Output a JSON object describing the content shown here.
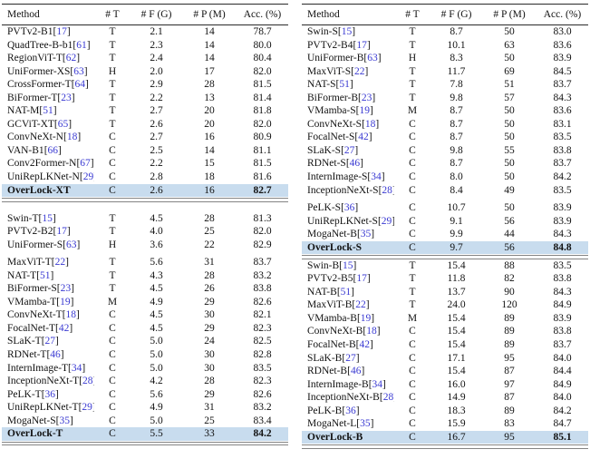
{
  "columns": {
    "method": "Method",
    "type": "# T",
    "flops": "# F (G)",
    "params": "# P (M)",
    "acc": "Acc. (%)"
  },
  "colors": {
    "highlight_row": "#c8dcee",
    "citation_blue": "#3a3ad2",
    "rule_dark": "#2a2a2a",
    "rule_gray": "#848484"
  },
  "left_table": {
    "sections": [
      {
        "gap_after": true,
        "rows": [
          {
            "method": "PVTv2-B1",
            "cite": "17",
            "t": "T",
            "f": "2.1",
            "p": "14",
            "acc": "78.7",
            "highlight": false,
            "gap_before": false
          },
          {
            "method": "QuadTree-B-b1",
            "cite": "61",
            "t": "T",
            "f": "2.3",
            "p": "14",
            "acc": "80.0",
            "highlight": false,
            "gap_before": false
          },
          {
            "method": "RegionViT-T",
            "cite": "62",
            "t": "T",
            "f": "2.4",
            "p": "14",
            "acc": "80.4",
            "highlight": false,
            "gap_before": false
          },
          {
            "method": "UniFormer-XS",
            "cite": "63",
            "t": "H",
            "f": "2.0",
            "p": "17",
            "acc": "82.0",
            "highlight": false,
            "gap_before": false
          },
          {
            "method": "CrossFormer-T",
            "cite": "64",
            "t": "T",
            "f": "2.9",
            "p": "28",
            "acc": "81.5",
            "highlight": false,
            "gap_before": false
          },
          {
            "method": "BiFormer-T",
            "cite": "23",
            "t": "T",
            "f": "2.2",
            "p": "13",
            "acc": "81.4",
            "highlight": false,
            "gap_before": false
          },
          {
            "method": "NAT-M",
            "cite": "51",
            "t": "T",
            "f": "2.7",
            "p": "20",
            "acc": "81.8",
            "highlight": false,
            "gap_before": false
          },
          {
            "method": "GCViT-XT",
            "cite": "65",
            "t": "T",
            "f": "2.6",
            "p": "20",
            "acc": "82.0",
            "highlight": false,
            "gap_before": false
          },
          {
            "method": "ConvNeXt-N",
            "cite": "18",
            "t": "C",
            "f": "2.7",
            "p": "16",
            "acc": "80.9",
            "highlight": false,
            "gap_before": false
          },
          {
            "method": "VAN-B1",
            "cite": "66",
            "t": "C",
            "f": "2.5",
            "p": "14",
            "acc": "81.1",
            "highlight": false,
            "gap_before": false
          },
          {
            "method": "Conv2Former-N",
            "cite": "67",
            "t": "C",
            "f": "2.2",
            "p": "15",
            "acc": "81.5",
            "highlight": false,
            "gap_before": false
          },
          {
            "method": "UniRepLKNet-N",
            "cite": "29",
            "t": "C",
            "f": "2.8",
            "p": "18",
            "acc": "81.6",
            "highlight": false,
            "gap_before": false
          },
          {
            "method": "OverLock-XT",
            "cite": "",
            "t": "C",
            "f": "2.6",
            "p": "16",
            "acc": "82.7",
            "highlight": true,
            "gap_before": false
          }
        ]
      },
      {
        "gap_after": false,
        "rows": [
          {
            "method": "Swin-T",
            "cite": "15",
            "t": "T",
            "f": "4.5",
            "p": "28",
            "acc": "81.3",
            "highlight": false,
            "gap_before": false
          },
          {
            "method": "PVTv2-B2",
            "cite": "17",
            "t": "T",
            "f": "4.0",
            "p": "25",
            "acc": "82.0",
            "highlight": false,
            "gap_before": false
          },
          {
            "method": "UniFormer-S",
            "cite": "63",
            "t": "H",
            "f": "3.6",
            "p": "22",
            "acc": "82.9",
            "highlight": false,
            "gap_before": false
          },
          {
            "method": "MaxViT-T",
            "cite": "22",
            "t": "T",
            "f": "5.6",
            "p": "31",
            "acc": "83.7",
            "highlight": false,
            "gap_before": true
          },
          {
            "method": "NAT-T",
            "cite": "51",
            "t": "T",
            "f": "4.3",
            "p": "28",
            "acc": "83.2",
            "highlight": false,
            "gap_before": false
          },
          {
            "method": "BiFormer-S",
            "cite": "23",
            "t": "T",
            "f": "4.5",
            "p": "26",
            "acc": "83.8",
            "highlight": false,
            "gap_before": false
          },
          {
            "method": "VMamba-T",
            "cite": "19",
            "t": "M",
            "f": "4.9",
            "p": "29",
            "acc": "82.6",
            "highlight": false,
            "gap_before": false
          },
          {
            "method": "ConvNeXt-T",
            "cite": "18",
            "t": "C",
            "f": "4.5",
            "p": "30",
            "acc": "82.1",
            "highlight": false,
            "gap_before": false
          },
          {
            "method": "FocalNet-T",
            "cite": "42",
            "t": "C",
            "f": "4.5",
            "p": "29",
            "acc": "82.3",
            "highlight": false,
            "gap_before": false
          },
          {
            "method": "SLaK-T",
            "cite": "27",
            "t": "C",
            "f": "5.0",
            "p": "24",
            "acc": "82.5",
            "highlight": false,
            "gap_before": false
          },
          {
            "method": "RDNet-T",
            "cite": "46",
            "t": "C",
            "f": "5.0",
            "p": "30",
            "acc": "82.8",
            "highlight": false,
            "gap_before": false
          },
          {
            "method": "InternImage-T",
            "cite": "34",
            "t": "C",
            "f": "5.0",
            "p": "30",
            "acc": "83.5",
            "highlight": false,
            "gap_before": false
          },
          {
            "method": "InceptionNeXt-T",
            "cite": "28",
            "t": "C",
            "f": "4.2",
            "p": "28",
            "acc": "82.3",
            "highlight": false,
            "gap_before": false
          },
          {
            "method": "PeLK-T",
            "cite": "36",
            "t": "C",
            "f": "5.6",
            "p": "29",
            "acc": "82.6",
            "highlight": false,
            "gap_before": false
          },
          {
            "method": "UniRepLKNet-T",
            "cite": "29",
            "t": "C",
            "f": "4.9",
            "p": "31",
            "acc": "83.2",
            "highlight": false,
            "gap_before": false
          },
          {
            "method": "MogaNet-S",
            "cite": "35",
            "t": "C",
            "f": "5.0",
            "p": "25",
            "acc": "83.4",
            "highlight": false,
            "gap_before": false
          },
          {
            "method": "OverLock-T",
            "cite": "",
            "t": "C",
            "f": "5.5",
            "p": "33",
            "acc": "84.2",
            "highlight": true,
            "gap_before": false
          }
        ]
      }
    ]
  },
  "right_table": {
    "sections": [
      {
        "gap_after": false,
        "rows": [
          {
            "method": "Swin-S",
            "cite": "15",
            "t": "T",
            "f": "8.7",
            "p": "50",
            "acc": "83.0",
            "highlight": false,
            "gap_before": false
          },
          {
            "method": "PVTv2-B4",
            "cite": "17",
            "t": "T",
            "f": "10.1",
            "p": "63",
            "acc": "83.6",
            "highlight": false,
            "gap_before": false
          },
          {
            "method": "UniFormer-B",
            "cite": "63",
            "t": "H",
            "f": "8.3",
            "p": "50",
            "acc": "83.9",
            "highlight": false,
            "gap_before": false
          },
          {
            "method": "MaxViT-S",
            "cite": "22",
            "t": "T",
            "f": "11.7",
            "p": "69",
            "acc": "84.5",
            "highlight": false,
            "gap_before": false
          },
          {
            "method": "NAT-S",
            "cite": "51",
            "t": "T",
            "f": "7.8",
            "p": "51",
            "acc": "83.7",
            "highlight": false,
            "gap_before": false
          },
          {
            "method": "BiFormer-B",
            "cite": "23",
            "t": "T",
            "f": "9.8",
            "p": "57",
            "acc": "84.3",
            "highlight": false,
            "gap_before": false
          },
          {
            "method": "VMamba-S",
            "cite": "19",
            "t": "M",
            "f": "8.7",
            "p": "50",
            "acc": "83.6",
            "highlight": false,
            "gap_before": false
          },
          {
            "method": "ConvNeXt-S",
            "cite": "18",
            "t": "C",
            "f": "8.7",
            "p": "50",
            "acc": "83.1",
            "highlight": false,
            "gap_before": false
          },
          {
            "method": "FocalNet-S",
            "cite": "42",
            "t": "C",
            "f": "8.7",
            "p": "50",
            "acc": "83.5",
            "highlight": false,
            "gap_before": false
          },
          {
            "method": "SLaK-S",
            "cite": "27",
            "t": "C",
            "f": "9.8",
            "p": "55",
            "acc": "83.8",
            "highlight": false,
            "gap_before": false
          },
          {
            "method": "RDNet-S",
            "cite": "46",
            "t": "C",
            "f": "8.7",
            "p": "50",
            "acc": "83.7",
            "highlight": false,
            "gap_before": false
          },
          {
            "method": "InternImage-S",
            "cite": "34",
            "t": "C",
            "f": "8.0",
            "p": "50",
            "acc": "84.2",
            "highlight": false,
            "gap_before": false
          },
          {
            "method": "InceptionNeXt-S",
            "cite": "28",
            "t": "C",
            "f": "8.4",
            "p": "49",
            "acc": "83.5",
            "highlight": false,
            "gap_before": false
          },
          {
            "method": "PeLK-S",
            "cite": "36",
            "t": "C",
            "f": "10.7",
            "p": "50",
            "acc": "83.9",
            "highlight": false,
            "gap_before": true
          },
          {
            "method": "UniRepLKNet-S",
            "cite": "29",
            "t": "C",
            "f": "9.1",
            "p": "56",
            "acc": "83.9",
            "highlight": false,
            "gap_before": false
          },
          {
            "method": "MogaNet-B",
            "cite": "35",
            "t": "C",
            "f": "9.9",
            "p": "44",
            "acc": "84.3",
            "highlight": false,
            "gap_before": false
          },
          {
            "method": "OverLock-S",
            "cite": "",
            "t": "C",
            "f": "9.7",
            "p": "56",
            "acc": "84.8",
            "highlight": true,
            "gap_before": false
          }
        ]
      },
      {
        "gap_after": false,
        "rows": [
          {
            "method": "Swin-B",
            "cite": "15",
            "t": "T",
            "f": "15.4",
            "p": "88",
            "acc": "83.5",
            "highlight": false,
            "gap_before": false
          },
          {
            "method": "PVTv2-B5",
            "cite": "17",
            "t": "T",
            "f": "11.8",
            "p": "82",
            "acc": "83.8",
            "highlight": false,
            "gap_before": false
          },
          {
            "method": "NAT-B",
            "cite": "51",
            "t": "T",
            "f": "13.7",
            "p": "90",
            "acc": "84.3",
            "highlight": false,
            "gap_before": false
          },
          {
            "method": "MaxViT-B",
            "cite": "22",
            "t": "T",
            "f": "24.0",
            "p": "120",
            "acc": "84.9",
            "highlight": false,
            "gap_before": false
          },
          {
            "method": "VMamba-B",
            "cite": "19",
            "t": "M",
            "f": "15.4",
            "p": "89",
            "acc": "83.9",
            "highlight": false,
            "gap_before": false
          },
          {
            "method": "ConvNeXt-B",
            "cite": "18",
            "t": "C",
            "f": "15.4",
            "p": "89",
            "acc": "83.8",
            "highlight": false,
            "gap_before": false
          },
          {
            "method": "FocalNet-B",
            "cite": "42",
            "t": "C",
            "f": "15.4",
            "p": "89",
            "acc": "83.7",
            "highlight": false,
            "gap_before": false
          },
          {
            "method": "SLaK-B",
            "cite": "27",
            "t": "C",
            "f": "17.1",
            "p": "95",
            "acc": "84.0",
            "highlight": false,
            "gap_before": false
          },
          {
            "method": "RDNet-B",
            "cite": "46",
            "t": "C",
            "f": "15.4",
            "p": "87",
            "acc": "84.4",
            "highlight": false,
            "gap_before": false
          },
          {
            "method": "InternImage-B",
            "cite": "34",
            "t": "C",
            "f": "16.0",
            "p": "97",
            "acc": "84.9",
            "highlight": false,
            "gap_before": false
          },
          {
            "method": "InceptionNeXt-B",
            "cite": "28",
            "t": "C",
            "f": "14.9",
            "p": "87",
            "acc": "84.0",
            "highlight": false,
            "gap_before": false
          },
          {
            "method": "PeLK-B",
            "cite": "36",
            "t": "C",
            "f": "18.3",
            "p": "89",
            "acc": "84.2",
            "highlight": false,
            "gap_before": false
          },
          {
            "method": "MogaNet-L",
            "cite": "35",
            "t": "C",
            "f": "15.9",
            "p": "83",
            "acc": "84.7",
            "highlight": false,
            "gap_before": false
          },
          {
            "method": "OverLock-B",
            "cite": "",
            "t": "C",
            "f": "16.7",
            "p": "95",
            "acc": "85.1",
            "highlight": true,
            "gap_before": false
          }
        ]
      }
    ]
  }
}
